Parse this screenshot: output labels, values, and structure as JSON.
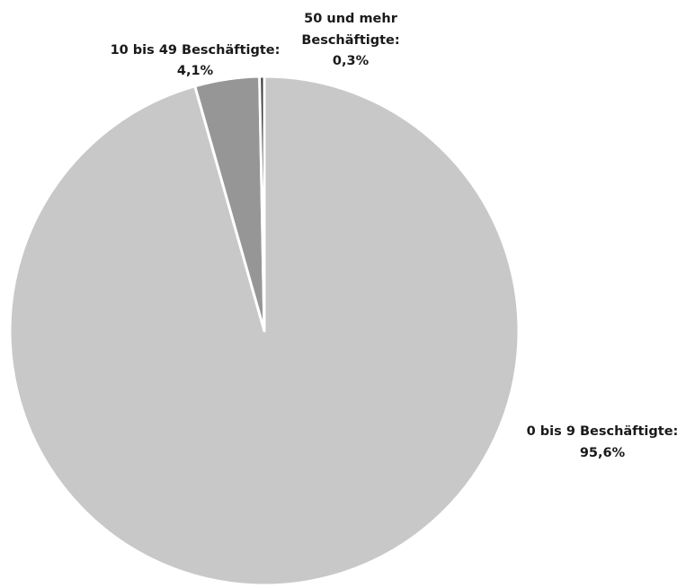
{
  "chart_data": {
    "type": "pie",
    "title": "",
    "slices": [
      {
        "label": "0 bis 9 Beschäftigte:",
        "value_text": "95,6%",
        "value": 95.6,
        "color": "#c8c8c8"
      },
      {
        "label": "10 bis 49 Beschäftigte:",
        "value_text": "4,1%",
        "value": 4.1,
        "color": "#969696"
      },
      {
        "label": "50 und mehr Beschäftigte:",
        "value_text": "0,3%",
        "value": 0.3,
        "color": "#3c3c3c"
      }
    ],
    "start_angle": "12 o'clock",
    "direction": "clockwise",
    "slice_border_color": "#ffffff"
  }
}
